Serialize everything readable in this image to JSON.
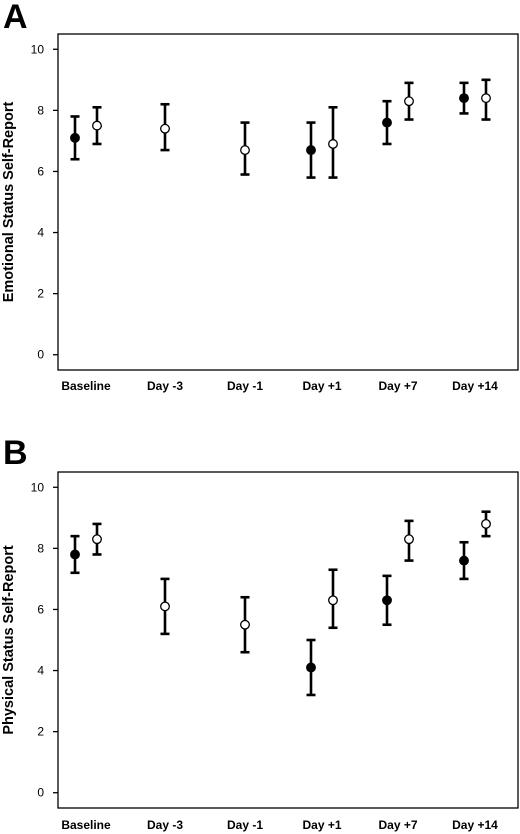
{
  "chart_data": [
    {
      "panel": "A",
      "type": "scatter",
      "ylabel": "Emotional Status Self-Report",
      "categories": [
        "Baseline",
        "Day -3",
        "Day -1",
        "Day +1",
        "Day +7",
        "Day +14"
      ],
      "ylim": [
        -0.5,
        10.5
      ],
      "yticks": [
        0,
        2,
        4,
        6,
        8,
        10
      ],
      "grid": false,
      "series": [
        {
          "marker": "filled",
          "color": "#000000",
          "values": [
            7.1,
            null,
            null,
            6.7,
            7.6,
            8.4
          ],
          "lower": [
            6.4,
            null,
            null,
            5.8,
            6.9,
            7.9
          ],
          "upper": [
            7.8,
            null,
            null,
            7.6,
            8.3,
            8.9
          ]
        },
        {
          "marker": "open",
          "color": "#000000",
          "values": [
            7.5,
            7.4,
            6.7,
            6.9,
            8.3,
            8.4
          ],
          "lower": [
            6.9,
            6.7,
            5.9,
            5.8,
            7.7,
            7.7
          ],
          "upper": [
            8.1,
            8.2,
            7.6,
            8.1,
            8.9,
            9.0
          ]
        }
      ]
    },
    {
      "panel": "B",
      "type": "scatter",
      "ylabel": "Physical Status Self-Report",
      "categories": [
        "Baseline",
        "Day -3",
        "Day -1",
        "Day +1",
        "Day +7",
        "Day +14"
      ],
      "ylim": [
        -0.5,
        10.5
      ],
      "yticks": [
        0,
        2,
        4,
        6,
        8,
        10
      ],
      "grid": false,
      "series": [
        {
          "marker": "filled",
          "color": "#000000",
          "values": [
            7.8,
            null,
            null,
            4.1,
            6.3,
            7.6
          ],
          "lower": [
            7.2,
            null,
            null,
            3.2,
            5.5,
            7.0
          ],
          "upper": [
            8.4,
            null,
            null,
            5.0,
            7.1,
            8.2
          ]
        },
        {
          "marker": "open",
          "color": "#000000",
          "values": [
            8.3,
            6.1,
            5.5,
            6.3,
            8.3,
            8.8
          ],
          "lower": [
            7.8,
            5.2,
            4.6,
            5.4,
            7.6,
            8.4
          ],
          "upper": [
            8.8,
            7.0,
            6.4,
            7.3,
            8.9,
            9.2
          ]
        }
      ]
    }
  ]
}
